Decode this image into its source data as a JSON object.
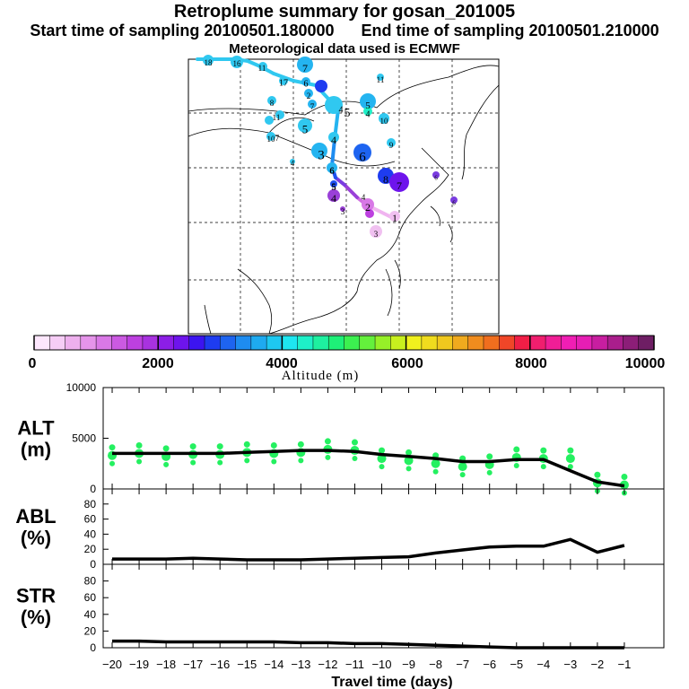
{
  "header": {
    "title": "Retroplume summary for gosan_201005",
    "start_label": "Start time of sampling 20100501.180000",
    "end_label": "End time of sampling 20100501.210000",
    "met_label": "Meteorological data used is ECMWF"
  },
  "chart_data": [
    {
      "type": "map",
      "name": "retroplume-map",
      "trajectory": {
        "labels": [
          "1",
          "2",
          "3",
          "4",
          "5",
          "6",
          "7",
          "8",
          "9",
          "10",
          "11",
          "12",
          "13",
          "14",
          "15",
          "16",
          "17",
          "18",
          "19"
        ],
        "segment_colors": [
          "#f0b4f0",
          "#d070e0",
          "#9a40d8",
          "#7a3ce0",
          "#1e50f0",
          "#1e8cf0",
          "#24b4f0",
          "#30c8f0",
          "#30c8f0",
          "#30c8f0",
          "#30c8f0",
          "#30c8f0",
          "#30c8f0",
          "#30c8f0",
          "#30c8f0",
          "#30c8f0",
          "#30c8f0",
          "#30c8f0"
        ]
      },
      "cluster_labels": [
        "1",
        "2",
        "3",
        "4",
        "5",
        "6",
        "7",
        "8",
        "9",
        "10",
        "11",
        "12",
        "13",
        "14",
        "15",
        "16",
        "17",
        "18",
        "19",
        "4",
        "5",
        "6",
        "7",
        "3",
        "4",
        "5",
        "6",
        "7",
        "8",
        "9",
        "10",
        "11",
        "4",
        "3",
        "3",
        "4",
        "5",
        "6",
        "7",
        "9",
        "10",
        "11",
        "16",
        "7",
        "5",
        "4",
        "3",
        "2"
      ]
    },
    {
      "type": "colorbar",
      "title": "Altitude (m)",
      "ticks": [
        "0",
        "2000",
        "4000",
        "6000",
        "8000",
        "10000"
      ],
      "range": [
        0,
        10000
      ],
      "colors": [
        "#fde7fd",
        "#f6cdf6",
        "#eeb0ee",
        "#e594ea",
        "#d978e6",
        "#cb5ae2",
        "#bd40e0",
        "#a832e0",
        "#8c1ee6",
        "#6e14ec",
        "#3c14f0",
        "#1e3cf0",
        "#1e64f0",
        "#1e8cf0",
        "#1eaaf0",
        "#1ec8f0",
        "#1ee6f0",
        "#1ef0c8",
        "#1ef0a0",
        "#1ef078",
        "#3cf050",
        "#64f03c",
        "#96f028",
        "#c8f01e",
        "#f0f01e",
        "#f0dc1e",
        "#f0c81e",
        "#f0aa1e",
        "#f08c1e",
        "#f06e1e",
        "#f04628",
        "#f01e46",
        "#f01e6e",
        "#f01e96",
        "#f01eb4",
        "#e61eb4",
        "#c81ea0",
        "#aa1e8c",
        "#8c1e78",
        "#6e1e64"
      ]
    },
    {
      "type": "line",
      "name": "ALT",
      "ylabel": "ALT (m)",
      "ylabel_lines": [
        "ALT",
        "(m)"
      ],
      "x": [
        -20,
        -19,
        -18,
        -17,
        -16,
        -15,
        -14,
        -13,
        -12,
        -11,
        -10,
        -9,
        -8,
        -7,
        -6,
        -5,
        -4,
        -3,
        -2,
        -1
      ],
      "values": [
        3500,
        3500,
        3500,
        3500,
        3500,
        3600,
        3700,
        3800,
        3800,
        3700,
        3400,
        3200,
        3000,
        2700,
        2700,
        2900,
        2900,
        1800,
        700,
        300
      ],
      "scatter_y": [
        3300,
        3500,
        3200,
        3400,
        3400,
        3600,
        3500,
        3600,
        3900,
        3800,
        3000,
        2800,
        2500,
        2200,
        2400,
        3100,
        3000,
        3000,
        600,
        400
      ],
      "ylim": [
        0,
        10000
      ],
      "yticks": [
        "0",
        "5000",
        "10000"
      ],
      "xticks": [
        "−20",
        "−19",
        "−18",
        "−17",
        "−16",
        "−15",
        "−14",
        "−13",
        "−12",
        "−11",
        "−10",
        "−9",
        "−8",
        "−7",
        "−6",
        "−5",
        "−4",
        "−3",
        "−2",
        "−1"
      ],
      "series_color": "#24f060"
    },
    {
      "type": "line",
      "name": "ABL",
      "ylabel": "ABL (%)",
      "ylabel_lines": [
        "ABL",
        "(%)"
      ],
      "x": [
        -20,
        -19,
        -18,
        -17,
        -16,
        -15,
        -14,
        -13,
        -12,
        -11,
        -10,
        -9,
        -8,
        -7,
        -6,
        -5,
        -4,
        -3,
        -2,
        -1
      ],
      "values": [
        7,
        7,
        7,
        8,
        7,
        6,
        6,
        6,
        7,
        8,
        9,
        10,
        15,
        19,
        23,
        24,
        24,
        33,
        16,
        25
      ],
      "ylim": [
        0,
        100
      ],
      "yticks": [
        "0",
        "20",
        "40",
        "60",
        "80"
      ]
    },
    {
      "type": "line",
      "name": "STR",
      "ylabel": "STR (%)",
      "ylabel_lines": [
        "STR",
        "(%)"
      ],
      "x": [
        -20,
        -19,
        -18,
        -17,
        -16,
        -15,
        -14,
        -13,
        -12,
        -11,
        -10,
        -9,
        -8,
        -7,
        -6,
        -5,
        -4,
        -3,
        -2,
        -1
      ],
      "values": [
        8,
        8,
        7,
        7,
        7,
        7,
        7,
        6,
        6,
        5,
        5,
        4,
        3,
        2,
        1,
        0,
        0,
        0,
        0,
        0
      ],
      "ylim": [
        0,
        100
      ],
      "yticks": [
        "0",
        "20",
        "40",
        "60",
        "80"
      ],
      "xlabel": "Travel time (days)"
    }
  ]
}
